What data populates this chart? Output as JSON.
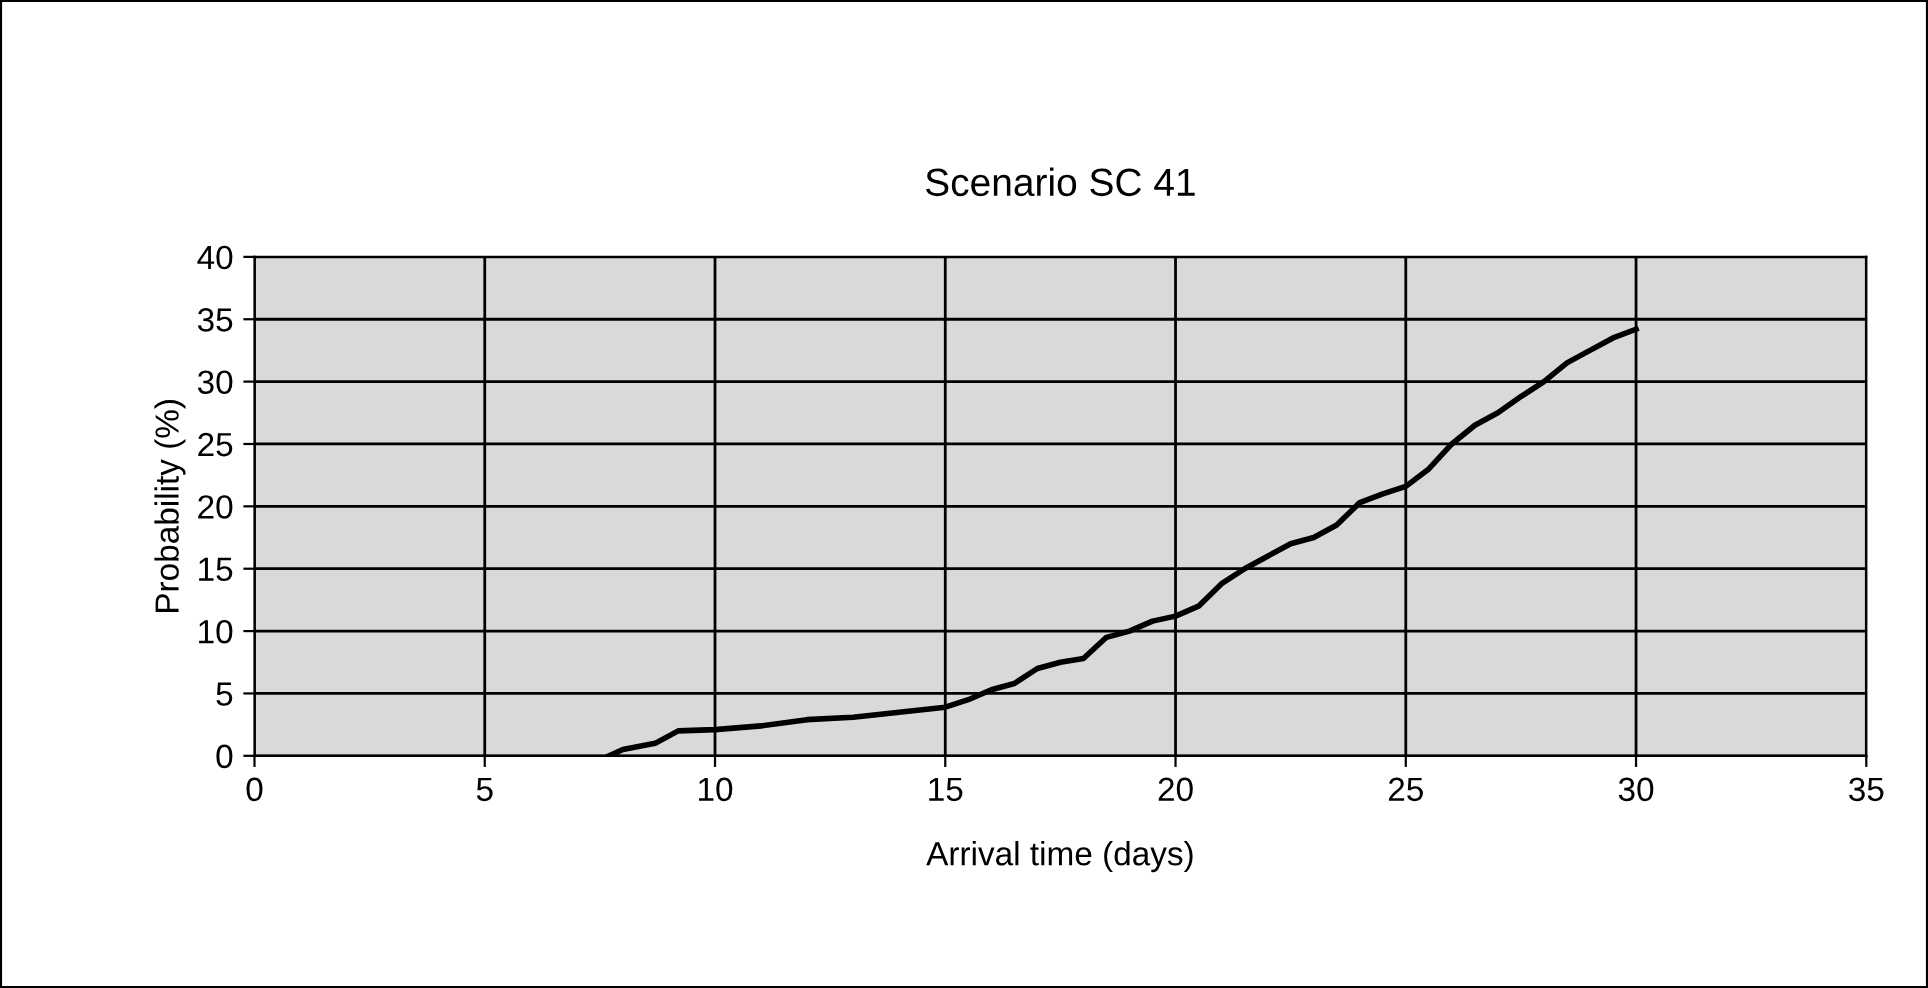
{
  "chart_data": {
    "type": "line",
    "title": "Scenario SC 41",
    "xlabel": "Arrival time (days)",
    "ylabel": "Probability (%)",
    "xlim": [
      0,
      35
    ],
    "xticks": [
      0,
      5,
      10,
      15,
      20,
      25,
      30,
      35
    ],
    "ylim": [
      0,
      40
    ],
    "yticks": [
      0,
      5,
      10,
      15,
      20,
      25,
      30,
      35,
      40
    ],
    "grid": true,
    "series": [
      {
        "color": "#000000",
        "x": [
          7.7,
          8,
          8.7,
          9.2,
          10,
          11,
          12,
          13,
          14,
          15,
          15.5,
          16,
          16.5,
          17,
          17.5,
          18,
          18.5,
          19,
          19.5,
          20,
          20.5,
          21,
          21.5,
          22,
          22.5,
          23,
          23.5,
          24,
          24.5,
          25,
          25.5,
          26,
          26.5,
          27,
          27.5,
          28,
          28.5,
          29,
          29.5,
          30
        ],
        "values": [
          0,
          0.5,
          1,
          2,
          2.1,
          2.4,
          2.9,
          3.1,
          3.5,
          3.9,
          4.5,
          5.3,
          5.8,
          7,
          7.5,
          7.8,
          9.5,
          10,
          10.8,
          11.2,
          12,
          13.8,
          15,
          16,
          17,
          17.5,
          18.5,
          20.3,
          21,
          21.6,
          23,
          25,
          26.5,
          27.5,
          28.8,
          30,
          31.5,
          32.5,
          33.5,
          34.2
        ]
      }
    ]
  }
}
